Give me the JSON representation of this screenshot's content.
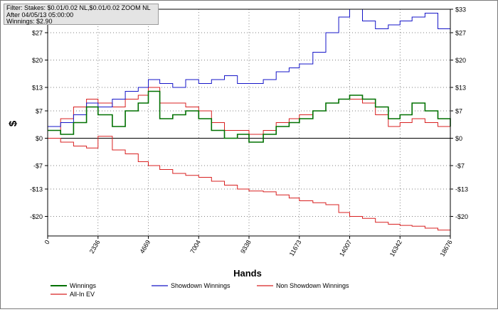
{
  "info_box": {
    "filter": "Filter: Stakes: $0.01/0.02 NL,$0.01/0.02 ZOOM NL",
    "after": "After 04/05/13 05:00:00",
    "winnings": "Winnings: $2.90"
  },
  "chart_data": {
    "type": "line",
    "title": "",
    "xlabel": "Hands",
    "ylabel": "$",
    "xlim": [
      0,
      18676
    ],
    "ylim": [
      -25,
      33
    ],
    "x_ticks": [
      0,
      2336,
      4669,
      7004,
      9338,
      11673,
      14007,
      16342,
      18676
    ],
    "y_ticks": [
      -20,
      -13,
      -7,
      0,
      7,
      13,
      20,
      27,
      33
    ],
    "y_tick_labels": [
      "-$20",
      "-$13",
      "-$7",
      "$0",
      "$7",
      "$13",
      "$20",
      "$27",
      "$33"
    ],
    "grid": true,
    "legend_position": "bottom",
    "x": [
      0,
      600,
      1200,
      1800,
      2336,
      3000,
      3600,
      4200,
      4669,
      5200,
      5800,
      6400,
      7004,
      7600,
      8200,
      8800,
      9338,
      10000,
      10600,
      11200,
      11673,
      12300,
      12900,
      13500,
      14007,
      14600,
      15200,
      15800,
      16342,
      16900,
      17500,
      18100,
      18676
    ],
    "series": [
      {
        "name": "Winnings",
        "color": "#007000",
        "values": [
          2,
          1,
          4,
          8,
          6,
          3,
          7,
          9,
          12,
          5,
          6,
          7,
          5,
          2,
          0,
          1,
          -1,
          1,
          3,
          4,
          5,
          7,
          9,
          10,
          11,
          10,
          8,
          5,
          6,
          9,
          7,
          5,
          3
        ]
      },
      {
        "name": "Showdown Winnings",
        "color": "#1515c8",
        "values": [
          3,
          4,
          6,
          9,
          8,
          10,
          12,
          13,
          15,
          14,
          13,
          15,
          14,
          15,
          16,
          14,
          14,
          15,
          17,
          18,
          19,
          22,
          27,
          31,
          33,
          30,
          28,
          29,
          30,
          31,
          32,
          28,
          29
        ]
      },
      {
        "name": "Non Showdown Winnings",
        "color": "#d82020",
        "values": [
          2,
          5,
          8,
          10,
          9,
          8,
          10,
          11,
          13,
          9,
          9,
          8,
          7,
          4,
          2,
          2,
          1,
          2,
          4,
          5,
          6,
          7,
          9,
          10,
          10,
          9,
          6,
          3,
          4,
          5,
          4,
          3,
          1
        ]
      },
      {
        "name": "All-In EV",
        "color": "#d82020",
        "values": [
          0,
          -1,
          -2,
          -2.5,
          0.5,
          -3,
          -4,
          -6,
          -7,
          -8,
          -9,
          -9.5,
          -10,
          -11,
          -12,
          -13,
          -13.5,
          -13.7,
          -14.5,
          -15.3,
          -16,
          -16.5,
          -17,
          -19,
          -20,
          -20.5,
          -21.5,
          -22,
          -22.3,
          -22.5,
          -23,
          -23.5,
          -25
        ]
      }
    ]
  }
}
